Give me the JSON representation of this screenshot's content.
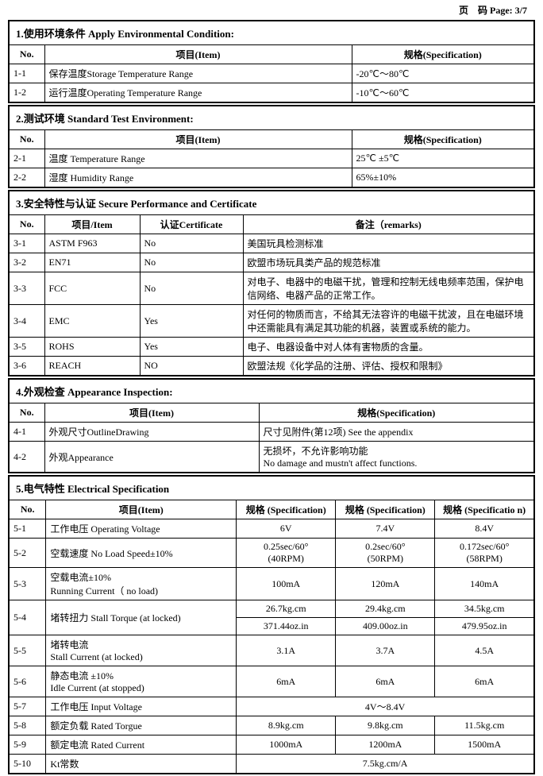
{
  "page_header": "页　码 Page: 3/7",
  "sec1": {
    "title": "1.使用环境条件 Apply Environmental Condition:",
    "h_no": "No.",
    "h_item": "项目(Item)",
    "h_spec": "规格(Specification)",
    "rows": [
      {
        "no": "1-1",
        "item": "保存温度Storage Temperature Range",
        "spec": "-20℃～80℃"
      },
      {
        "no": "1-2",
        "item": "运行温度Operating Temperature Range",
        "spec": "-10℃～60℃"
      }
    ]
  },
  "sec2": {
    "title": "2.测试环境 Standard Test Environment:",
    "h_no": "No.",
    "h_item": "项目(Item)",
    "h_spec": "规格(Specification)",
    "rows": [
      {
        "no": "2-1",
        "item": "温度 Temperature Range",
        "spec": "25℃ ±5℃"
      },
      {
        "no": "2-2",
        "item": "湿度 Humidity Range",
        "spec": "65%±10%"
      }
    ]
  },
  "sec3": {
    "title": "3.安全特性与认证 Secure Performance and Certificate",
    "h_no": "No.",
    "h_item": "项目/Item",
    "h_cert": "认证Certificate",
    "h_remarks": "备注（remarks)",
    "rows": [
      {
        "no": "3-1",
        "item": "ASTM F963",
        "cert": "No",
        "remarks": "美国玩具检测标准"
      },
      {
        "no": "3-2",
        "item": "EN71",
        "cert": "No",
        "remarks": "欧盟市场玩具类产品的规范标准"
      },
      {
        "no": "3-3",
        "item": "FCC",
        "cert": "No",
        "remarks": "对电子、电器中的电磁干扰，管理和控制无线电频率范围，保护电信网络、电器产品的正常工作。"
      },
      {
        "no": "3-4",
        "item": "EMC",
        "cert": "Yes",
        "remarks": "对任何的物质而言，不给其无法容许的电磁干扰波，且在电磁环境中还需能具有满足其功能的机器，装置或系统的能力。"
      },
      {
        "no": "3-5",
        "item": "ROHS",
        "cert": "Yes",
        "remarks": "电子、电器设备中对人体有害物质的含量。"
      },
      {
        "no": "3-6",
        "item": "REACH",
        "cert": "NO",
        "remarks": "欧盟法规《化学品的注册、评估、授权和限制》"
      }
    ]
  },
  "sec4": {
    "title": "4.外观检查 Appearance Inspection:",
    "h_no": "No.",
    "h_item": "项目(Item)",
    "h_spec": "规格(Specification)",
    "rows": [
      {
        "no": "4-1",
        "item": "外观尺寸OutlineDrawing",
        "spec": "尺寸见附件(第12项) See the appendix"
      },
      {
        "no": "4-2",
        "item": "外观Appearance",
        "spec": "无损坏，不允许影响功能\nNo damage and mustn't affect functions."
      }
    ]
  },
  "sec5": {
    "title": "5.电气特性 Electrical Specification",
    "h_no": "No.",
    "h_item": "项目(Item)",
    "h_spec1": "规格\n(Specification)",
    "h_spec2": "规格\n(Specification)",
    "h_spec3": "规格\n(Specificatio\nn)",
    "rows": [
      {
        "no": "5-1",
        "item": "工作电压 Operating Voltage",
        "s1": "6V",
        "s2": "7.4V",
        "s3": "8.4V"
      },
      {
        "no": "5-2",
        "item": "空载速度 No Load Speed±10%",
        "s1": "0.25sec/60°\n(40RPM)",
        "s2": "0.2sec/60°\n(50RPM)",
        "s3": "0.172sec/60°\n(58RPM)"
      },
      {
        "no": "5-3",
        "item": "空载电流±10%\nRunning Current（ no load)",
        "s1": "100mA",
        "s2": "120mA",
        "s3": "140mA"
      },
      {
        "no": "5-4",
        "item": "堵转扭力 Stall Torque (at locked)",
        "sub": [
          [
            "26.7kg.cm",
            "29.4kg.cm",
            "34.5kg.cm"
          ],
          [
            "371.44oz.in",
            "409.00oz.in",
            "479.95oz.in"
          ]
        ]
      },
      {
        "no": "5-5",
        "item": "堵转电流\nStall Current (at locked)",
        "s1": "3.1A",
        "s2": "3.7A",
        "s3": "4.5A"
      },
      {
        "no": "5-6",
        "item": "静态电流 ±10%\nIdle Current (at stopped)",
        "s1": "6mA",
        "s2": "6mA",
        "s3": "6mA"
      },
      {
        "no": "5-7",
        "item": "工作电压 Input Voltage",
        "span3": "4V～8.4V"
      },
      {
        "no": "5-8",
        "item": "额定负载 Rated Torgue",
        "s1": "8.9kg.cm",
        "s2": "9.8kg.cm",
        "s3": "11.5kg.cm"
      },
      {
        "no": "5-9",
        "item": "额定电流 Rated Current",
        "s1": "1000mA",
        "s2": "1200mA",
        "s3": "1500mA"
      },
      {
        "no": "5-10",
        "item": "Kt常数",
        "span3": "7.5kg.cm/A"
      }
    ]
  }
}
